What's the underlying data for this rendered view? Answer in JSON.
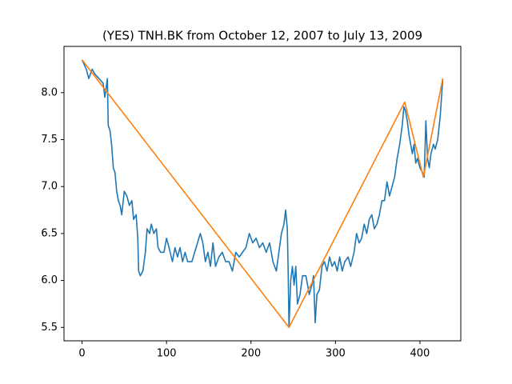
{
  "chart_data": {
    "type": "line",
    "title": "(YES) TNH.BK from October 12, 2007 to July 13, 2009",
    "xlim": [
      -21.35,
      448.35
    ],
    "xticks": [
      0,
      100,
      200,
      300,
      400
    ],
    "ylim": [
      5.3575,
      8.4925
    ],
    "yticks": [
      5.5,
      {
        "value": 6,
        "label": "6.0"
      },
      6.5,
      {
        "value": 7,
        "label": "7.0"
      },
      7.5,
      {
        "value": 8,
        "label": "8.0"
      }
    ],
    "grid": false,
    "series": [
      {
        "color": "#1f77b4",
        "x": [
          0,
          5,
          8,
          12,
          15,
          20,
          25,
          27,
          30,
          31,
          33,
          35,
          37,
          39,
          41,
          43,
          45,
          47,
          50,
          53,
          56,
          59,
          61,
          64,
          66,
          67,
          69,
          72,
          75,
          77,
          80,
          82,
          85,
          88,
          90,
          93,
          97,
          100,
          103,
          107,
          110,
          113,
          116,
          119,
          122,
          125,
          130,
          135,
          140,
          143,
          146,
          149,
          152,
          155,
          158,
          162,
          166,
          170,
          174,
          178,
          182,
          186,
          190,
          194,
          198,
          202,
          206,
          210,
          214,
          218,
          222,
          226,
          230,
          233,
          236,
          239,
          241,
          243,
          244,
          245,
          247,
          249,
          251,
          253,
          255,
          258,
          261,
          265,
          269,
          272,
          274,
          276,
          278,
          281,
          284,
          287,
          290,
          293,
          296,
          299,
          302,
          305,
          308,
          311,
          315,
          318,
          322,
          325,
          328,
          331,
          334,
          337,
          340,
          343,
          346,
          349,
          352,
          355,
          358,
          361,
          364,
          367,
          370,
          373,
          376,
          379,
          381,
          383,
          385,
          387,
          389,
          391,
          393,
          395,
          397,
          400,
          403,
          405,
          407,
          409,
          411,
          413,
          416,
          418,
          421,
          424,
          427
        ],
        "values": [
          8.35,
          8.25,
          8.15,
          8.25,
          8.2,
          8.15,
          8.1,
          7.95,
          8.15,
          7.65,
          7.6,
          7.45,
          7.2,
          7.15,
          6.95,
          6.85,
          6.8,
          6.7,
          6.95,
          6.9,
          6.8,
          6.85,
          6.65,
          6.7,
          6.45,
          6.1,
          6.05,
          6.1,
          6.3,
          6.55,
          6.5,
          6.6,
          6.5,
          6.55,
          6.35,
          6.3,
          6.3,
          6.45,
          6.35,
          6.2,
          6.35,
          6.25,
          6.35,
          6.2,
          6.3,
          6.2,
          6.2,
          6.35,
          6.5,
          6.4,
          6.2,
          6.3,
          6.15,
          6.4,
          6.15,
          6.25,
          6.3,
          6.2,
          6.2,
          6.1,
          6.3,
          6.25,
          6.3,
          6.35,
          6.5,
          6.4,
          6.45,
          6.35,
          6.4,
          6.3,
          6.4,
          6.2,
          6.1,
          6.3,
          6.5,
          6.6,
          6.75,
          6.55,
          6.1,
          5.5,
          6.0,
          6.15,
          5.95,
          6.15,
          5.75,
          5.85,
          6.05,
          6.05,
          5.85,
          5.95,
          6.05,
          5.55,
          5.85,
          5.9,
          6.15,
          6.2,
          6.1,
          6.25,
          6.15,
          6.2,
          6.1,
          6.25,
          6.1,
          6.2,
          6.25,
          6.15,
          6.3,
          6.5,
          6.4,
          6.45,
          6.6,
          6.5,
          6.65,
          6.7,
          6.55,
          6.6,
          6.7,
          6.85,
          6.85,
          7.05,
          6.9,
          7.0,
          7.1,
          7.3,
          7.45,
          7.65,
          7.85,
          7.8,
          7.7,
          7.55,
          7.45,
          7.35,
          7.45,
          7.25,
          7.3,
          7.2,
          7.15,
          7.1,
          7.7,
          7.3,
          7.2,
          7.35,
          7.45,
          7.4,
          7.5,
          7.75,
          8.15
        ]
      },
      {
        "color": "#ff7f0e",
        "x": [
          0,
          245,
          382,
          404,
          427
        ],
        "values": [
          8.35,
          5.5,
          7.9,
          7.1,
          8.15
        ]
      }
    ]
  }
}
